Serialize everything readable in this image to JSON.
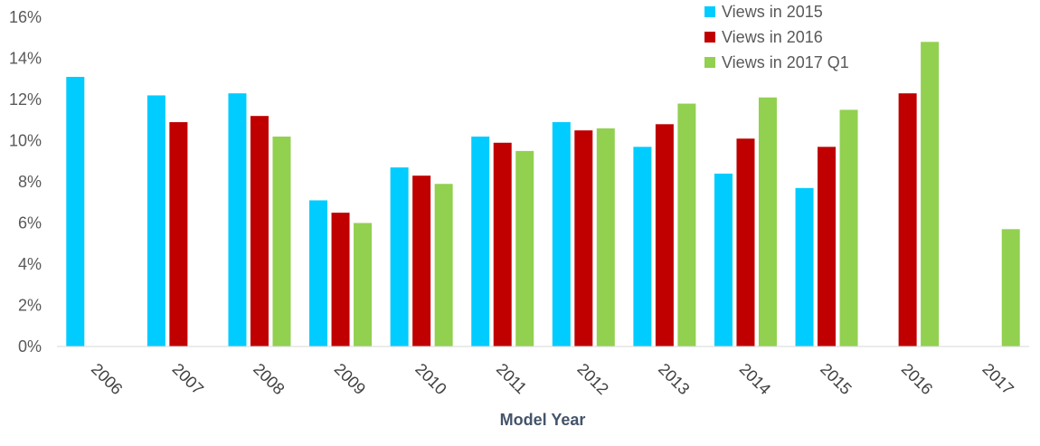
{
  "chart_data": {
    "type": "bar",
    "title": "",
    "xlabel": "Model Year",
    "ylabel": "",
    "ylim": [
      0,
      16
    ],
    "yticks": [
      0,
      2,
      4,
      6,
      8,
      10,
      12,
      14,
      16
    ],
    "ytick_labels": [
      "0%",
      "2%",
      "4%",
      "6%",
      "8%",
      "10%",
      "12%",
      "14%",
      "16%"
    ],
    "grid": false,
    "legend_position": "top-right",
    "categories": [
      "2006",
      "2007",
      "2008",
      "2009",
      "2010",
      "2011",
      "2012",
      "2013",
      "2014",
      "2015",
      "2016",
      "2017"
    ],
    "series": [
      {
        "name": "Views in 2015",
        "color": "#00ccff",
        "values": [
          13.1,
          12.2,
          12.3,
          7.1,
          8.7,
          10.2,
          10.9,
          9.7,
          8.4,
          7.7,
          null,
          null
        ]
      },
      {
        "name": "Views in 2016",
        "color": "#c00000",
        "values": [
          null,
          10.9,
          11.2,
          6.5,
          8.3,
          9.9,
          10.5,
          10.8,
          10.1,
          9.7,
          12.3,
          null
        ]
      },
      {
        "name": "Views in 2017 Q1",
        "color": "#92d050",
        "values": [
          null,
          null,
          10.2,
          6.0,
          7.9,
          9.5,
          10.6,
          11.8,
          12.1,
          11.5,
          14.8,
          5.7
        ]
      }
    ]
  }
}
